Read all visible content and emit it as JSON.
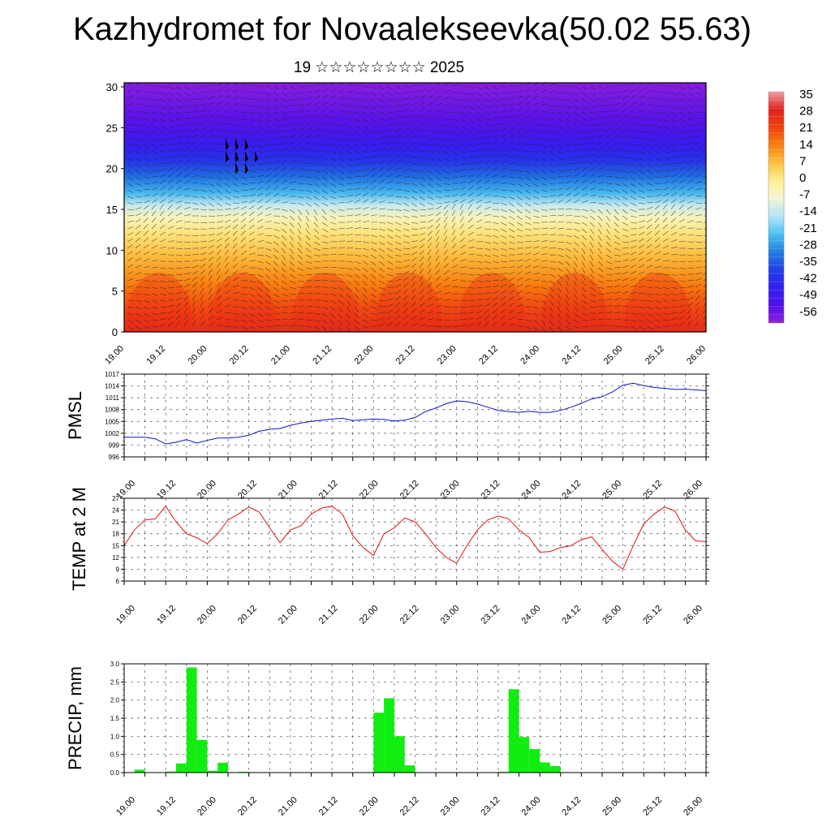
{
  "title": "Kazhydromet for Novaalekseevka(50.02 55.63)",
  "subtitle": "19 ☆☆☆☆☆☆☆☆ 2025",
  "chart_data": [
    {
      "type": "heatmap",
      "name": "Temperature / wind cross-section",
      "x_ticks": [
        "19.00",
        "19.12",
        "20.00",
        "20.12",
        "21.00",
        "21.12",
        "22.00",
        "22.12",
        "23.00",
        "23.12",
        "24.00",
        "24.12",
        "25.00",
        "25.12",
        "26.00"
      ],
      "y_ticks": [
        "0",
        "5",
        "10",
        "15",
        "20",
        "25",
        "30"
      ],
      "ylim": [
        0,
        30.5
      ],
      "colorbar_labels": [
        "35",
        "28",
        "21",
        "14",
        "7",
        "0",
        "-7",
        "-14",
        "-21",
        "-28",
        "-35",
        "-42",
        "-49",
        "-56"
      ],
      "colorbar_colors": [
        "#f0a0a0",
        "#e02020",
        "#f04010",
        "#f88010",
        "#fcc040",
        "#fff090",
        "#f4f4d8",
        "#b4e4f8",
        "#4cc0f0",
        "#2080e0",
        "#2040e8",
        "#3020f0",
        "#5010e8",
        "#9020e0"
      ],
      "temperature_profile": {
        "heights": [
          0,
          3,
          6,
          9,
          12,
          14,
          15.5,
          17,
          19,
          21,
          23,
          26,
          30.5
        ],
        "values": [
          26,
          20,
          14,
          8,
          2,
          -4,
          -12,
          -22,
          -30,
          -38,
          -44,
          -50,
          -55
        ]
      }
    },
    {
      "type": "line",
      "ylabel": "PMSL",
      "color": "#1010d0",
      "ylim": [
        996,
        1017
      ],
      "y_ticks": [
        "996",
        "999",
        "1002",
        "1005",
        "1008",
        "1011",
        "1014",
        "1017"
      ],
      "x_ticks": [
        "19.00",
        "19.12",
        "20.00",
        "20.12",
        "21.00",
        "21.12",
        "22.00",
        "22.12",
        "23.00",
        "23.12",
        "24.00",
        "24.12",
        "25.00",
        "25.12",
        "26.00"
      ],
      "x": [
        0,
        3,
        6,
        9,
        12,
        15,
        18,
        21,
        24,
        27,
        30,
        33,
        36,
        39,
        42,
        45,
        48,
        51,
        54,
        57,
        60,
        63,
        66,
        69,
        72,
        75,
        78,
        81,
        84,
        87,
        90,
        93,
        96,
        99,
        102,
        105,
        108,
        111,
        114,
        117,
        120,
        123,
        126,
        129,
        132,
        135,
        138,
        141,
        144,
        147,
        150,
        153,
        156,
        159,
        162,
        165,
        168
      ],
      "values": [
        1001,
        1001,
        1001,
        1000.6,
        999.3,
        999.7,
        1000.4,
        999.5,
        1000.2,
        1000.8,
        1000.8,
        1001,
        1001.5,
        1002.5,
        1003,
        1003.2,
        1004,
        1004.6,
        1005,
        1005.3,
        1005.6,
        1005.8,
        1005.2,
        1005.4,
        1005.6,
        1005.5,
        1005.1,
        1005.3,
        1006,
        1007.5,
        1008.4,
        1009.5,
        1010.2,
        1010,
        1009.4,
        1008.6,
        1007.8,
        1007.5,
        1007.3,
        1007.6,
        1007.3,
        1007.3,
        1007.8,
        1008.6,
        1009.6,
        1010.7,
        1011.3,
        1012.5,
        1014.2,
        1014.7,
        1014.1,
        1013.6,
        1013.4,
        1013.1,
        1013.2,
        1013,
        1012.8
      ]
    },
    {
      "type": "line",
      "ylabel": "TEMP at 2 M",
      "color": "#e01010",
      "ylim": [
        6,
        27
      ],
      "y_ticks": [
        "6",
        "9",
        "12",
        "15",
        "18",
        "21",
        "24",
        "27"
      ],
      "x_ticks": [
        "19.00",
        "19.12",
        "20.00",
        "20.12",
        "21.00",
        "21.12",
        "22.00",
        "22.12",
        "23.00",
        "23.12",
        "24.00",
        "24.12",
        "25.00",
        "25.12",
        "26.00"
      ],
      "x": [
        0,
        3,
        6,
        9,
        12,
        15,
        18,
        21,
        24,
        27,
        30,
        33,
        36,
        39,
        42,
        45,
        48,
        51,
        54,
        57,
        60,
        63,
        66,
        69,
        72,
        75,
        78,
        81,
        84,
        87,
        90,
        93,
        96,
        99,
        102,
        105,
        108,
        111,
        114,
        117,
        120,
        123,
        126,
        129,
        132,
        135,
        138,
        141,
        144,
        147,
        150,
        153,
        156,
        159,
        162,
        165,
        168
      ],
      "values": [
        15,
        19,
        21.5,
        21.8,
        25,
        21,
        18,
        17,
        15.5,
        18,
        21.5,
        23,
        24.8,
        23.5,
        19.5,
        15.7,
        19,
        20,
        23,
        24.5,
        25,
        23,
        17.5,
        14.5,
        12.5,
        18,
        19.5,
        22,
        21,
        18,
        14.5,
        12,
        10.5,
        15,
        19,
        21.5,
        22.5,
        21.8,
        19,
        17,
        13.3,
        13.5,
        14.5,
        15,
        16.5,
        17.2,
        14,
        11,
        9,
        15,
        20.5,
        23,
        24.8,
        23.8,
        19,
        16.2,
        16
      ]
    },
    {
      "type": "bar",
      "ylabel": "PRECIP, mm",
      "color": "#10ee10",
      "ylim": [
        0,
        3
      ],
      "y_ticks": [
        "0.0",
        "0.5",
        "1.0",
        "1.5",
        "2.0",
        "2.5",
        "3.0"
      ],
      "x_ticks": [
        "19.00",
        "19.12",
        "20.00",
        "20.12",
        "21.00",
        "21.12",
        "22.00",
        "22.12",
        "23.00",
        "23.12",
        "24.00",
        "24.12",
        "25.00",
        "25.12",
        "26.00"
      ],
      "x": [
        6,
        15,
        18,
        21,
        24,
        27,
        30,
        36,
        75,
        78,
        81,
        84,
        111,
        114,
        117,
        120,
        123,
        126
      ],
      "values": [
        0.08,
        0.03,
        0.25,
        2.9,
        0.9,
        0.05,
        0.27,
        0.02,
        1.65,
        2.05,
        1.0,
        0.2,
        0.02,
        2.3,
        0.98,
        0.65,
        0.28,
        0.18
      ]
    }
  ]
}
